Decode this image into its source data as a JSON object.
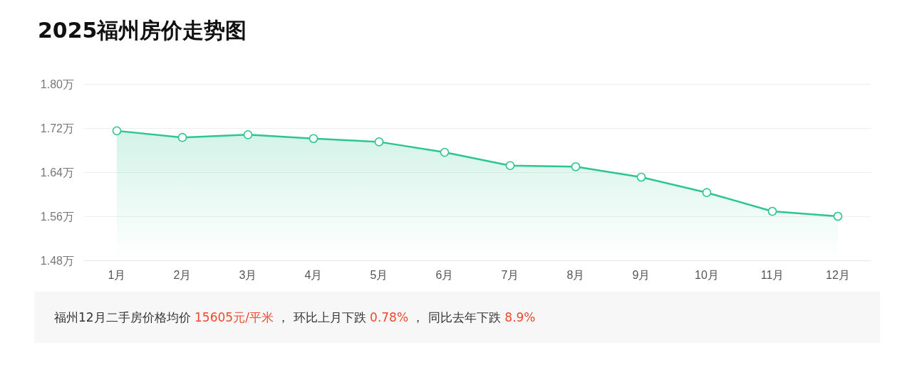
{
  "chart_data": {
    "type": "area",
    "title": "2025福州房价走势图",
    "categories": [
      "1月",
      "2月",
      "3月",
      "4月",
      "5月",
      "6月",
      "7月",
      "8月",
      "9月",
      "10月",
      "11月",
      "12月"
    ],
    "series": [
      {
        "color": "#2cc68f",
        "values": [
          1.715,
          1.703,
          1.708,
          1.701,
          1.695,
          1.676,
          1.652,
          1.65,
          1.631,
          1.603,
          1.569,
          1.56
        ]
      }
    ],
    "ylim": [
      1.48,
      1.8
    ],
    "yticks": [
      {
        "value": 1.48,
        "label": "1.48万"
      },
      {
        "value": 1.56,
        "label": "1.56万"
      },
      {
        "value": 1.64,
        "label": "1.64万"
      },
      {
        "value": 1.72,
        "label": "1.72万"
      },
      {
        "value": 1.8,
        "label": "1.80万"
      }
    ],
    "grid": "y",
    "marker": "circle",
    "annotations": [
      "福州12月二手房价格均价 15605元/平米 ， 环比上月下跌 0.78% ， 同比去年下跌 8.9%"
    ]
  }
}
